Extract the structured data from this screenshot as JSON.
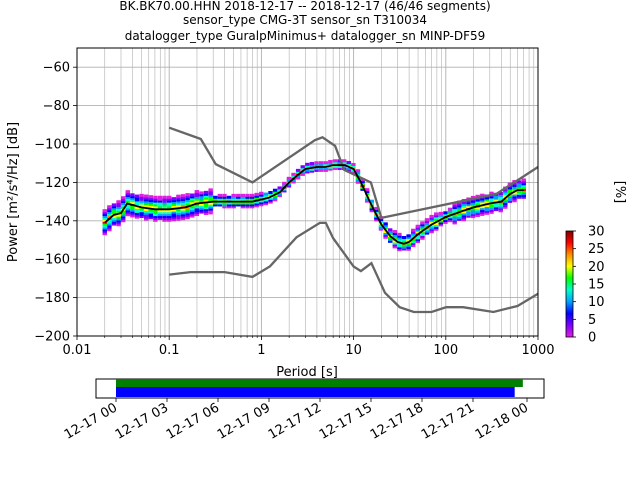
{
  "chart_data": {
    "type": "heatmap",
    "title_lines": [
      "BK.BK70.00.HHN   2018-12-17 -- 2018-12-17  (46/46 segments)",
      "sensor_type CMG-3T sensor_sn T310034",
      "datalogger_type GuralpMinimus+ datalogger_sn MINP-DF59"
    ],
    "xlabel": "Period [s]",
    "ylabel": "Power [m²/s⁴/Hz] [dB]",
    "xscale": "log",
    "xlim": [
      0.01,
      1000
    ],
    "ylim": [
      -200,
      -50
    ],
    "grid": true,
    "xticks": [
      {
        "value": 0.01,
        "label": "0.01"
      },
      {
        "value": 0.1,
        "label": "0.1"
      },
      {
        "value": 1,
        "label": "1"
      },
      {
        "value": 10,
        "label": "10"
      },
      {
        "value": 100,
        "label": "100"
      },
      {
        "value": 1000,
        "label": "1000"
      }
    ],
    "yticks": [
      {
        "value": -60,
        "label": "−60"
      },
      {
        "value": -80,
        "label": "−80"
      },
      {
        "value": -100,
        "label": "−100"
      },
      {
        "value": -120,
        "label": "−120"
      },
      {
        "value": -140,
        "label": "−140"
      },
      {
        "value": -160,
        "label": "−160"
      },
      {
        "value": -180,
        "label": "−180"
      },
      {
        "value": -200,
        "label": "−200"
      }
    ],
    "nhnm": {
      "x": [
        0.1,
        0.22,
        0.32,
        0.8,
        3.8,
        4.6,
        6.3,
        7.9,
        15.4,
        20,
        354.8,
        1000
      ],
      "y": [
        -91.5,
        -97.4,
        -110.5,
        -120,
        -98,
        -96.5,
        -101,
        -113.5,
        -120,
        -138.5,
        -126,
        -112
      ]
    },
    "nlnm": {
      "x": [
        0.1,
        0.17,
        0.4,
        0.8,
        1.24,
        2.4,
        4.3,
        5,
        6,
        10,
        12,
        15.6,
        21.9,
        31.6,
        45,
        70,
        101,
        154,
        328,
        600,
        1000
      ],
      "y": [
        -168,
        -166.7,
        -166.7,
        -169.2,
        -163.7,
        -148.6,
        -141.1,
        -141.1,
        -149,
        -163.8,
        -166.2,
        -162.1,
        -177.5,
        -185,
        -187.5,
        -187.5,
        -185,
        -185,
        -187.5,
        -184.4,
        -178
      ]
    },
    "mode": {
      "x": [
        0.02,
        0.025,
        0.03,
        0.035,
        0.05,
        0.07,
        0.1,
        0.15,
        0.2,
        0.3,
        0.5,
        0.8,
        1.2,
        1.6,
        2,
        2.5,
        3,
        4,
        5,
        6,
        7,
        8,
        10,
        12,
        15,
        20,
        25,
        30,
        35,
        40,
        50,
        70,
        100,
        150,
        200,
        300,
        400,
        500,
        600,
        700
      ],
      "y": [
        -141,
        -137,
        -136,
        -131,
        -133,
        -134,
        -134,
        -133,
        -131,
        -130,
        -130,
        -130,
        -128,
        -125,
        -120,
        -116,
        -113,
        -112,
        -112,
        -111,
        -111,
        -111,
        -113,
        -120,
        -130,
        -142,
        -148,
        -151,
        -152,
        -151,
        -147,
        -142,
        -138,
        -135,
        -133,
        -131,
        -130,
        -126,
        -124,
        -124
      ]
    },
    "colorbar": {
      "label": "[%]",
      "min": 0,
      "max": 30,
      "ticks": [
        {
          "value": 0,
          "label": "0"
        },
        {
          "value": 5,
          "label": "5"
        },
        {
          "value": 10,
          "label": "10"
        },
        {
          "value": 15,
          "label": "15"
        },
        {
          "value": 20,
          "label": "20"
        },
        {
          "value": 25,
          "label": "25"
        },
        {
          "value": 30,
          "label": "30"
        }
      ],
      "colors": [
        "#ffffff",
        "#e020e0",
        "#8000ff",
        "#0000ff",
        "#00a0ff",
        "#00ffcc",
        "#00ff00",
        "#ffff00",
        "#ff9000",
        "#ff0000",
        "#800000"
      ]
    },
    "coverage": {
      "data_fraction": [
        0,
        0.98
      ],
      "psd_fraction": [
        0,
        0.96
      ],
      "colors": {
        "data": "#008000",
        "psd": "#0000ff"
      },
      "time_ticks": [
        "12-17 00",
        "12-17 03",
        "12-17 06",
        "12-17 09",
        "12-17 12",
        "12-17 15",
        "12-17 18",
        "12-17 21",
        "12-18 00"
      ]
    }
  }
}
